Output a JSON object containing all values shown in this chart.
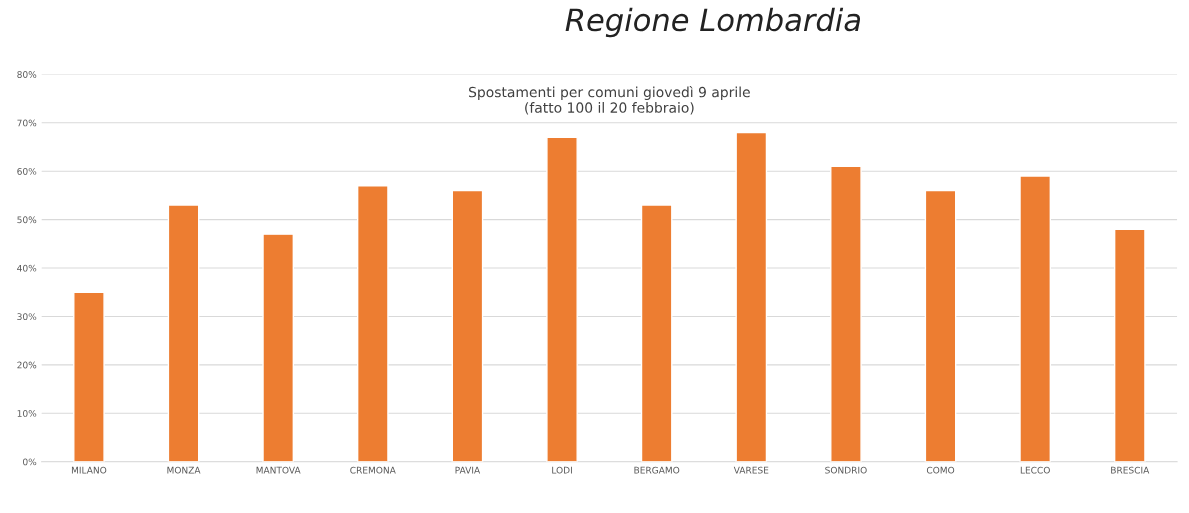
{
  "chart_data": {
    "type": "bar",
    "title": "Spostamenti per comuni giovedì 9 aprile\n(fatto 100 il 20 febbraio)",
    "annotations": [
      "Regione Lombardia"
    ],
    "categories": [
      "MILANO",
      "MONZA",
      "MANTOVA",
      "CREMONA",
      "PAVIA",
      "LODI",
      "BERGAMO",
      "VARESE",
      "SONDRIO",
      "COMO",
      "LECCO",
      "BRESCIA"
    ],
    "values": [
      35,
      53,
      47,
      57,
      56,
      67,
      53,
      68,
      61,
      56,
      59,
      48
    ],
    "color": "#ed7d31",
    "ylim": [
      0,
      80
    ],
    "yticks": [
      {
        "value": 0,
        "label": "0%"
      },
      {
        "value": 10,
        "label": "10%"
      },
      {
        "value": 20,
        "label": "20%"
      },
      {
        "value": 30,
        "label": "30%"
      },
      {
        "value": 40,
        "label": "40%"
      },
      {
        "value": 50,
        "label": "50%"
      },
      {
        "value": 60,
        "label": "60%"
      },
      {
        "value": 70,
        "label": "70%"
      },
      {
        "value": 80,
        "label": "80%"
      }
    ],
    "grid": "y",
    "legend": false
  }
}
